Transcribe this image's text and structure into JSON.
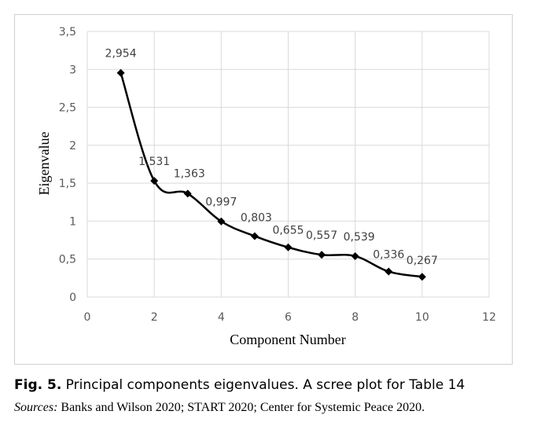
{
  "figure": {
    "fig_label": "Fig. 5.",
    "caption_text": " Principal components eigenvalues. A scree plot for Table 14",
    "sources_label": "Sources:",
    "sources_text": " Banks and Wilson 2020; START 2020; Center for Systemic Peace 2020."
  },
  "chart_data": {
    "type": "line",
    "title": "",
    "xlabel": "Component Number",
    "ylabel": "Eigenvalue",
    "xlim": [
      0,
      12
    ],
    "ylim": [
      0,
      3.5
    ],
    "x_ticks": [
      "0",
      "2",
      "4",
      "6",
      "8",
      "10",
      "12"
    ],
    "y_ticks": [
      "0",
      "0,5",
      "1",
      "1,5",
      "2",
      "2,5",
      "3",
      "3,5"
    ],
    "grid": true,
    "line_style": "smoothed",
    "marker": "diamond",
    "series": [
      {
        "x": [
          1,
          2,
          3,
          4,
          5,
          6,
          7,
          8,
          9,
          10
        ],
        "values": [
          2.954,
          1.531,
          1.363,
          0.997,
          0.803,
          0.655,
          0.557,
          0.539,
          0.336,
          0.267
        ],
        "data_labels": [
          "2,954",
          "1,531",
          "1,363",
          "0,997",
          "0,803",
          "0,655",
          "0,557",
          "0,539",
          "0,336",
          "0,267"
        ]
      }
    ]
  }
}
